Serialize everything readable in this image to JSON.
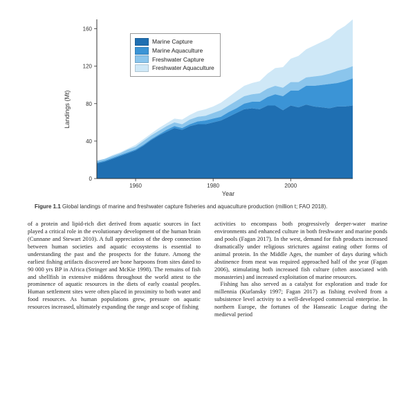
{
  "chart": {
    "type": "area",
    "xlabel": "Year",
    "ylabel": "Landings (Mt)",
    "xlim": [
      1950,
      2016
    ],
    "ylim": [
      0,
      170
    ],
    "xticks": [
      1960,
      1980,
      2000
    ],
    "yticks": [
      0,
      40,
      80,
      120,
      160
    ],
    "background_color": "#ffffff",
    "series": [
      {
        "name": "Marine Capture",
        "color": "#1f6fb2"
      },
      {
        "name": "Marine Aquaculture",
        "color": "#3b94d6"
      },
      {
        "name": "Freshwater Capture",
        "color": "#8bc5ec"
      },
      {
        "name": "Freshwater Aquaculture",
        "color": "#cfe8f7"
      }
    ],
    "stacked_points": [
      {
        "x": 1950,
        "y": [
          16,
          17,
          19,
          19
        ]
      },
      {
        "x": 1952,
        "y": [
          18,
          19,
          21,
          21
        ]
      },
      {
        "x": 1954,
        "y": [
          21,
          22,
          24,
          25
        ]
      },
      {
        "x": 1956,
        "y": [
          24,
          25,
          27,
          28
        ]
      },
      {
        "x": 1958,
        "y": [
          27,
          28,
          31,
          32
        ]
      },
      {
        "x": 1960,
        "y": [
          30,
          31,
          34,
          36
        ]
      },
      {
        "x": 1962,
        "y": [
          35,
          36,
          40,
          42
        ]
      },
      {
        "x": 1964,
        "y": [
          41,
          42,
          46,
          48
        ]
      },
      {
        "x": 1966,
        "y": [
          46,
          47,
          51,
          54
        ]
      },
      {
        "x": 1968,
        "y": [
          50,
          52,
          56,
          59
        ]
      },
      {
        "x": 1970,
        "y": [
          54,
          56,
          60,
          64
        ]
      },
      {
        "x": 1972,
        "y": [
          52,
          54,
          58,
          63
        ]
      },
      {
        "x": 1974,
        "y": [
          56,
          58,
          63,
          68
        ]
      },
      {
        "x": 1976,
        "y": [
          58,
          61,
          66,
          72
        ]
      },
      {
        "x": 1978,
        "y": [
          58,
          62,
          67,
          74
        ]
      },
      {
        "x": 1980,
        "y": [
          60,
          64,
          70,
          77
        ]
      },
      {
        "x": 1982,
        "y": [
          62,
          66,
          73,
          81
        ]
      },
      {
        "x": 1984,
        "y": [
          66,
          71,
          78,
          87
        ]
      },
      {
        "x": 1986,
        "y": [
          70,
          75,
          83,
          93
        ]
      },
      {
        "x": 1988,
        "y": [
          74,
          80,
          88,
          99
        ]
      },
      {
        "x": 1990,
        "y": [
          75,
          82,
          90,
          102
        ]
      },
      {
        "x": 1992,
        "y": [
          74,
          82,
          91,
          104
        ]
      },
      {
        "x": 1994,
        "y": [
          78,
          87,
          96,
          112
        ]
      },
      {
        "x": 1996,
        "y": [
          78,
          90,
          99,
          118
        ]
      },
      {
        "x": 1998,
        "y": [
          73,
          88,
          97,
          119
        ]
      },
      {
        "x": 2000,
        "y": [
          78,
          94,
          103,
          128
        ]
      },
      {
        "x": 2002,
        "y": [
          76,
          94,
          103,
          131
        ]
      },
      {
        "x": 2004,
        "y": [
          79,
          99,
          108,
          138
        ]
      },
      {
        "x": 2006,
        "y": [
          77,
          99,
          109,
          142
        ]
      },
      {
        "x": 2008,
        "y": [
          76,
          100,
          110,
          146
        ]
      },
      {
        "x": 2010,
        "y": [
          75,
          101,
          112,
          150
        ]
      },
      {
        "x": 2012,
        "y": [
          77,
          102,
          115,
          158
        ]
      },
      {
        "x": 2014,
        "y": [
          77,
          104,
          117,
          163
        ]
      },
      {
        "x": 2016,
        "y": [
          78,
          107,
          120,
          170
        ]
      }
    ]
  },
  "caption_label": "Figure 1.1",
  "caption_text": "Global landings of marine and freshwater capture fisheries and aquaculture production (million t; FAO 2018).",
  "body": {
    "p1": "of a protein and lipid-rich diet derived from aquatic sources in fact played a critical role in the evolutionary development of the human brain (Cunnane and Stewart 2010). A full appreciation of the deep connection between human societies and aquatic ecosystems is essential to understanding the past and the prospects for the future. Among the earliest fishing artifacts discovered are bone harpoons from sites dated to 90 000 yrs BP in Africa (Stringer and McKie 1998). The remains of fish and shellfish in extensive middens throughout the world attest to the prominence of aquatic resources in the diets of early coastal peoples. Human settlement sites were often placed in proximity to both water and food resources. As human populations grew, pressure on aquatic resources increased, ultimately expanding the range and scope of fishing",
    "p2": "activities to encompass both progressively deeper-water marine environments and enhanced culture in both freshwater and marine ponds and pools (Fagan 2017). In the west, demand for fish products increased dramatically under religious strictures against eating other forms of animal protein. In the Middle Ages, the number of days during which abstinence from meat was required approached half of the year (Fagan 2006), stimulating both increased fish culture (often associated with monasteries) and increased exploitation of marine resources.",
    "p3": "Fishing has also served as a catalyst for exploration and trade for millennia (Kurlansky 1997; Fagan 2017) as fishing evolved from a subsistence level activity to a well-developed commercial enterprise. In northern Europe, the fortunes of the Hanseatic League during the medieval period"
  }
}
